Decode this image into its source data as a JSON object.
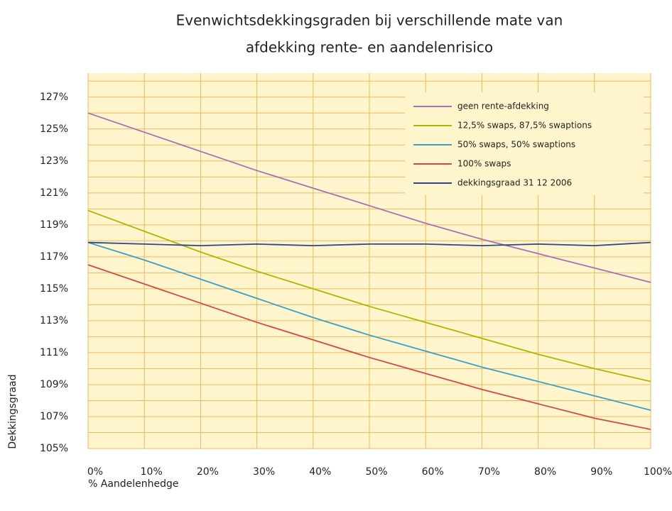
{
  "chart_data": {
    "type": "line",
    "title": [
      "Evenwichtsdekkingsgraden bij verschillende mate van",
      "afdekking rente- en aandelenrisico"
    ],
    "x_label": "% Aandelenhedge",
    "y_label": "Dekkingsgraad",
    "x": [
      0,
      10,
      20,
      30,
      40,
      50,
      60,
      70,
      80,
      90,
      100
    ],
    "series": [
      {
        "name": "geen rente-afdekking",
        "color": "#a472b4",
        "values": [
          126,
          124.8,
          123.6,
          122.4,
          121.3,
          120.2,
          119.1,
          118.1,
          117.2,
          116.3,
          115.4
        ]
      },
      {
        "name": "12,5% swaps, 87,5% swaptions",
        "color": "#a9b900",
        "values": [
          119.9,
          118.6,
          117.3,
          116.1,
          115.0,
          113.9,
          112.9,
          111.9,
          110.9,
          110.0,
          109.2
        ]
      },
      {
        "name": "50% swaps, 50% swaptions",
        "color": "#3a9fc8",
        "values": [
          117.9,
          116.8,
          115.6,
          114.4,
          113.2,
          112.1,
          111.1,
          110.1,
          109.2,
          108.3,
          107.4
        ]
      },
      {
        "name": "100% swaps",
        "color": "#d04a4a",
        "values": [
          116.5,
          115.3,
          114.1,
          112.9,
          111.8,
          110.7,
          109.7,
          108.7,
          107.8,
          106.9,
          106.2
        ]
      },
      {
        "name": "dekkingsgraad 31 12 2006",
        "color": "#2c4790",
        "values": [
          117.9,
          117.8,
          117.7,
          117.8,
          117.7,
          117.8,
          117.8,
          117.7,
          117.8,
          117.7,
          117.9
        ]
      }
    ],
    "xlim": [
      0,
      100
    ],
    "xticks": [
      {
        "value": 0,
        "label": "0%"
      },
      {
        "value": 10,
        "label": "10%"
      },
      {
        "value": 20,
        "label": "20%"
      },
      {
        "value": 30,
        "label": "30%"
      },
      {
        "value": 40,
        "label": "40%"
      },
      {
        "value": 50,
        "label": "50%"
      },
      {
        "value": 60,
        "label": "60%"
      },
      {
        "value": 70,
        "label": "70%"
      },
      {
        "value": 80,
        "label": "80%"
      },
      {
        "value": 90,
        "label": "90%"
      },
      {
        "value": 100,
        "label": "100%"
      }
    ],
    "ylim": [
      105,
      128.5
    ],
    "yticks": [
      {
        "value": 105,
        "label": "105%"
      },
      {
        "value": 107,
        "label": "107%"
      },
      {
        "value": 109,
        "label": "109%"
      },
      {
        "value": 111,
        "label": "111%"
      },
      {
        "value": 113,
        "label": "113%"
      },
      {
        "value": 115,
        "label": "115%"
      },
      {
        "value": 117,
        "label": "117%"
      },
      {
        "value": 119,
        "label": "119%"
      },
      {
        "value": 121,
        "label": "121%"
      },
      {
        "value": 123,
        "label": "123%"
      },
      {
        "value": 125,
        "label": "125%"
      },
      {
        "value": 127,
        "label": "127%"
      }
    ],
    "yminorticks": [
      106,
      108,
      110,
      112,
      114,
      116,
      118,
      120,
      122,
      124,
      126,
      128
    ],
    "grid": true,
    "legend": "upper right",
    "background": "#fff5cc",
    "grid_color": "#f0b860"
  }
}
